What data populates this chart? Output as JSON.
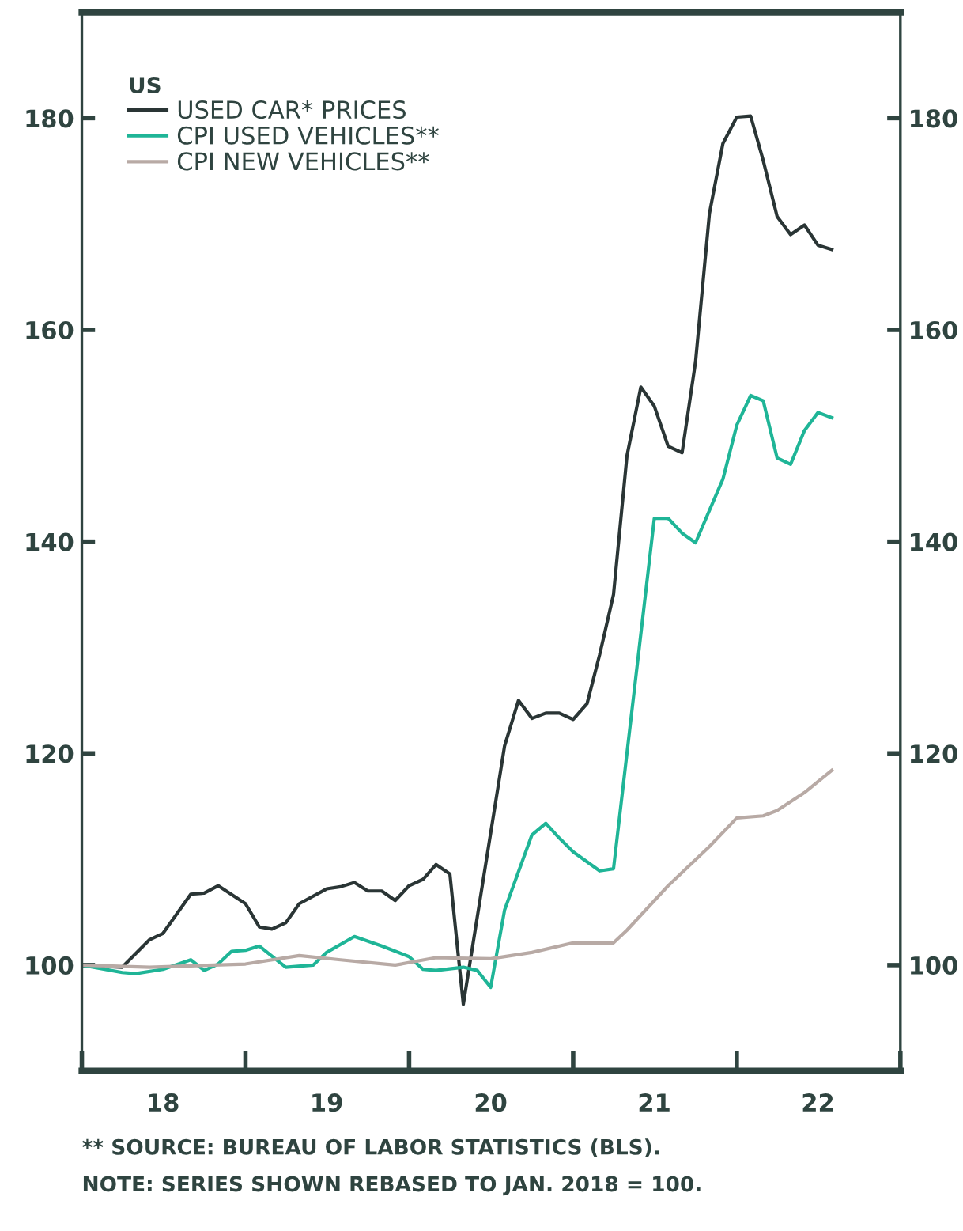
{
  "chart_data": {
    "type": "line",
    "legend_title": "US",
    "legend": "top left",
    "grid": false,
    "line_style": "solid",
    "xlim": [
      "2018-01",
      "2023-01"
    ],
    "xticks": [
      {
        "value": "2018-01",
        "label": null
      },
      {
        "value": "2018-07",
        "label": "18"
      },
      {
        "value": "2019-01",
        "label": null
      },
      {
        "value": "2019-07",
        "label": "19"
      },
      {
        "value": "2020-01",
        "label": null
      },
      {
        "value": "2020-07",
        "label": "20"
      },
      {
        "value": "2021-01",
        "label": null
      },
      {
        "value": "2021-07",
        "label": "21"
      },
      {
        "value": "2022-01",
        "label": null
      },
      {
        "value": "2022-07",
        "label": "22"
      },
      {
        "value": "2023-01",
        "label": null
      }
    ],
    "ylim": [
      90,
      190
    ],
    "yticks": [
      100,
      120,
      140,
      160,
      180
    ],
    "y2lim": [
      90,
      190
    ],
    "y2ticks": [
      100,
      120,
      140,
      160,
      180
    ],
    "series": [
      {
        "name": "USED CAR* PRICES",
        "color": "#2a3535",
        "x": [
          "2018-01",
          "2018-04",
          "2018-06",
          "2018-07",
          "2018-09",
          "2018-10",
          "2018-11",
          "2019-01",
          "2019-02",
          "2019-03",
          "2019-04",
          "2019-05",
          "2019-07",
          "2019-08",
          "2019-09",
          "2019-10",
          "2019-11",
          "2019-12",
          "2020-01",
          "2020-02",
          "2020-03",
          "2020-04",
          "2020-05",
          "2020-08",
          "2020-09",
          "2020-10",
          "2020-11",
          "2020-12",
          "2021-01",
          "2021-02",
          "2021-03",
          "2021-04",
          "2021-05",
          "2021-06",
          "2021-07",
          "2021-08",
          "2021-09",
          "2021-10",
          "2021-11",
          "2021-12",
          "2022-01",
          "2022-02",
          "2022-03",
          "2022-04",
          "2022-05",
          "2022-06",
          "2022-07",
          "2022-08"
        ],
        "values": [
          100,
          99.8,
          102.4,
          103,
          106.7,
          106.8,
          107.5,
          105.8,
          103.6,
          103.4,
          104,
          105.8,
          107.2,
          107.4,
          107.8,
          107,
          107,
          106.1,
          107.5,
          108.1,
          109.5,
          108.6,
          96.3,
          120.7,
          125,
          123.3,
          123.8,
          123.8,
          123.2,
          124.7,
          129.3,
          135,
          148.1,
          154.6,
          152.8,
          149,
          148.4,
          157,
          171,
          177.6,
          180.1,
          180.2,
          176,
          170.7,
          169,
          169.9,
          168,
          167.6
        ]
      },
      {
        "name": "CPI USED VEHICLES**",
        "color": "#1fb597",
        "x": [
          "2018-01",
          "2018-04",
          "2018-05",
          "2018-07",
          "2018-09",
          "2018-10",
          "2018-11",
          "2018-12",
          "2019-01",
          "2019-02",
          "2019-04",
          "2019-06",
          "2019-07",
          "2019-09",
          "2019-11",
          "2020-01",
          "2020-02",
          "2020-03",
          "2020-05",
          "2020-06",
          "2020-07",
          "2020-08",
          "2020-10",
          "2020-11",
          "2020-12",
          "2021-01",
          "2021-03",
          "2021-04",
          "2021-07",
          "2021-08",
          "2021-09",
          "2021-10",
          "2021-12",
          "2022-01",
          "2022-02",
          "2022-03",
          "2022-04",
          "2022-05",
          "2022-06",
          "2022-07",
          "2022-08"
        ],
        "values": [
          100,
          99.3,
          99.2,
          99.6,
          100.5,
          99.5,
          100.1,
          101.3,
          101.4,
          101.8,
          99.8,
          100,
          101.2,
          102.7,
          101.8,
          100.8,
          99.6,
          99.5,
          99.8,
          99.5,
          97.9,
          105.2,
          112.3,
          113.4,
          112,
          110.7,
          108.9,
          109.1,
          142.2,
          142.2,
          140.8,
          139.9,
          145.9,
          151,
          153.8,
          153.3,
          147.9,
          147.3,
          150.5,
          152.2,
          151.7
        ]
      },
      {
        "name": "CPI NEW VEHICLES**",
        "color": "#b8aaa5",
        "x": [
          "2018-01",
          "2018-06",
          "2019-01",
          "2019-05",
          "2019-08",
          "2019-12",
          "2020-03",
          "2020-07",
          "2020-10",
          "2021-01",
          "2021-04",
          "2021-05",
          "2021-08",
          "2021-11",
          "2022-01",
          "2022-03",
          "2022-04",
          "2022-06",
          "2022-08"
        ],
        "values": [
          100,
          99.8,
          100.1,
          100.9,
          100.5,
          100,
          100.7,
          100.6,
          101.2,
          102.1,
          102.1,
          103.3,
          107.5,
          111.2,
          113.9,
          114.1,
          114.6,
          116.3,
          118.4
        ]
      }
    ],
    "annotations": [
      "** SOURCE: BUREAU OF LABOR STATISTICS (BLS).",
      "NOTE: SERIES SHOWN REBASED TO JAN. 2018 = 100."
    ]
  }
}
